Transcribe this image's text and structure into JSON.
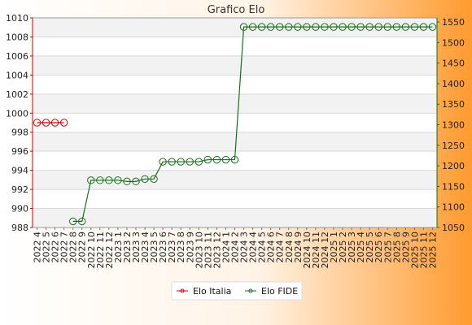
{
  "chart_data": {
    "type": "line",
    "title": "Grafico Elo",
    "xlabel": "",
    "ylabel": "",
    "categories": [
      "2022 4",
      "2022 5",
      "2022 6",
      "2022 7",
      "2022 8",
      "2022 9",
      "2022 10",
      "2022 11",
      "2022 12",
      "2023 1",
      "2023 2",
      "2023 3",
      "2023 4",
      "2023 5",
      "2023 6",
      "2023 7",
      "2023 8",
      "2023 9",
      "2023 10",
      "2023 11",
      "2023 12",
      "2024 1",
      "2024 2",
      "2024 3",
      "2024 4",
      "2024 5",
      "2024 6",
      "2024 7",
      "2024 8",
      "2024 9",
      "2024 10",
      "2024 11",
      "2024 12",
      "2025 1",
      "2025 2",
      "2025 3",
      "2025 4",
      "2025 5",
      "2025 6",
      "2025 7",
      "2025 8",
      "2025 9",
      "2025 10",
      "2025 11",
      "2025 12"
    ],
    "ylim_left": [
      988,
      1010
    ],
    "yticks_left": [
      988,
      990,
      992,
      994,
      996,
      998,
      1000,
      1002,
      1004,
      1006,
      1008,
      1010
    ],
    "ylim_right": [
      1050,
      1560
    ],
    "yticks_right": [
      1050,
      1100,
      1150,
      1200,
      1250,
      1300,
      1350,
      1400,
      1450,
      1500,
      1550
    ],
    "grid": true,
    "legend": "bottom",
    "series": [
      {
        "name": "Elo Italia",
        "axis": "left",
        "color": "#cc0000",
        "values": [
          999,
          999,
          999,
          999,
          null,
          null,
          null,
          null,
          null,
          null,
          null,
          null,
          null,
          null,
          null,
          null,
          null,
          null,
          null,
          null,
          null,
          null,
          null,
          null,
          null,
          null,
          null,
          null,
          null,
          null,
          null,
          null,
          null,
          null,
          null,
          null,
          null,
          null,
          null,
          null,
          null,
          null,
          null,
          null,
          null
        ]
      },
      {
        "name": "Elo FIDE",
        "axis": "right",
        "color": "#1a6e1a",
        "values": [
          null,
          null,
          null,
          null,
          1065,
          1065,
          1165,
          1165,
          1165,
          1165,
          1162,
          1162,
          1168,
          1168,
          1210,
          1210,
          1210,
          1210,
          1210,
          1215,
          1215,
          1215,
          1215,
          1538,
          1538,
          1538,
          1538,
          1538,
          1538,
          1538,
          1538,
          1538,
          1538,
          1538,
          1538,
          1538,
          1538,
          1538,
          1538,
          1538,
          1538,
          1538,
          1538,
          1538,
          1538
        ]
      }
    ]
  }
}
